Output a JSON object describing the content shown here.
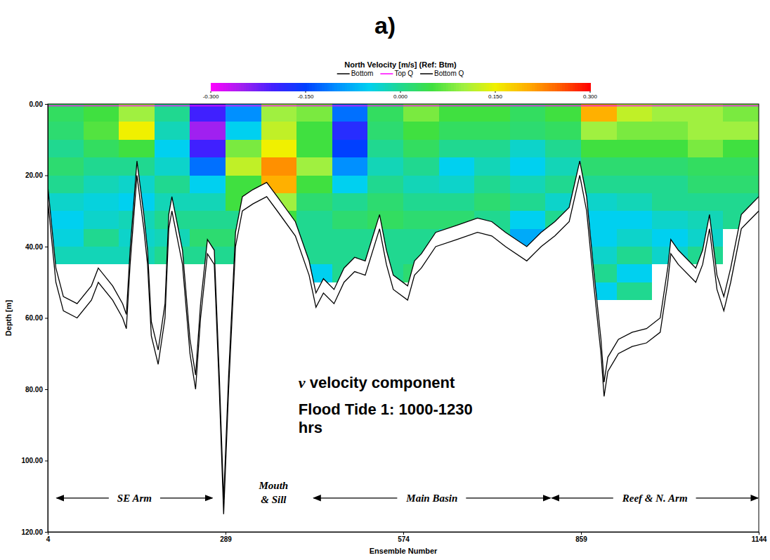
{
  "chart_data": {
    "type": "heatmap",
    "panel": "a)",
    "x_label": "Ensemble Number",
    "y_label": "Depth [m]",
    "xlim": [
      4,
      1144
    ],
    "xticks": [
      4,
      289,
      574,
      859,
      1144
    ],
    "ylim": [
      0,
      120
    ],
    "yticks": [
      {
        "value": 0,
        "label": "0.00"
      },
      {
        "value": 20,
        "label": "20.00"
      },
      {
        "value": 40,
        "label": "40.00"
      },
      {
        "value": 60,
        "label": "60.00"
      },
      {
        "value": 80,
        "label": "80.00"
      },
      {
        "value": 100,
        "label": "100.00"
      },
      {
        "value": 120,
        "label": "120.00"
      }
    ],
    "grid": false,
    "legend": "top",
    "colorbar": {
      "title": "North Velocity [m/s] (Ref: Btm)",
      "range": [
        -0.3,
        0.3
      ],
      "ticks": [
        {
          "value": -0.3,
          "label": "-0.300"
        },
        {
          "value": -0.15,
          "label": "-0.150"
        },
        {
          "value": 0,
          "label": "0.000"
        },
        {
          "value": 0.15,
          "label": "0.150"
        },
        {
          "value": 0.3,
          "label": "0.300"
        }
      ]
    },
    "x_bins": [
      4,
      61,
      118,
      175,
      232,
      289,
      346,
      403,
      460,
      517,
      574,
      631,
      688,
      745,
      802,
      859,
      916,
      973,
      1030,
      1087,
      1144
    ],
    "y_bins": [
      0,
      5,
      10,
      15,
      20,
      25,
      30,
      35,
      40,
      45,
      50,
      55,
      60
    ],
    "cells": [
      [
        0.03,
        0.05,
        0.1,
        0,
        -0.2,
        -0.1,
        0.1,
        0.08,
        -0.12,
        0.03,
        0.08,
        0.05,
        0.05,
        0.03,
        0.05,
        0.2,
        0.12,
        0.1,
        0.1,
        0.08
      ],
      [
        0.02,
        0.06,
        0.15,
        -0.02,
        -0.25,
        -0.05,
        0.12,
        0.05,
        -0.18,
        0.02,
        0.05,
        0.03,
        0.03,
        0.02,
        0.03,
        0.1,
        0.08,
        0.08,
        0.1,
        0.1
      ],
      [
        0,
        0.03,
        0.05,
        -0.05,
        -0.2,
        0.08,
        0.15,
        0.05,
        -0.15,
        0,
        0.03,
        0,
        0,
        -0.03,
        0,
        0.05,
        0.05,
        0.05,
        0.08,
        0.05
      ],
      [
        0.02,
        0,
        0,
        -0.03,
        -0.12,
        0.12,
        0.22,
        0.1,
        -0.1,
        -0.02,
        0,
        -0.05,
        -0.02,
        -0.05,
        -0.02,
        0.02,
        0.02,
        0.02,
        0.03,
        0.03
      ],
      [
        0,
        -0.02,
        -0.03,
        0,
        -0.05,
        0.05,
        0.2,
        0.05,
        -0.05,
        0,
        -0.02,
        -0.03,
        0,
        -0.02,
        0,
        0,
        0,
        0,
        0.02,
        0.02
      ],
      [
        -0.03,
        -0.04,
        -0.05,
        -0.02,
        -0.02,
        0.05,
        0.1,
        0.02,
        0,
        0.02,
        0,
        0,
        0.02,
        0,
        -0.03,
        -0.03,
        -0.02,
        0,
        0,
        0
      ],
      [
        -0.05,
        -0.03,
        -0.02,
        0,
        0,
        0,
        0.05,
        0,
        0.02,
        0.03,
        0.02,
        0.02,
        0,
        -0.05,
        0,
        -0.05,
        -0.05,
        -0.03,
        -0.02,
        0
      ],
      [
        -0.04,
        0,
        -0.03,
        -0.02,
        0.02,
        0.02,
        null,
        0,
        0,
        0,
        0,
        -0.03,
        0,
        -0.08,
        0,
        -0.05,
        -0.03,
        -0.05,
        -0.03,
        null
      ],
      [
        -0.02,
        -0.02,
        -0.02,
        0,
        0,
        0,
        null,
        0,
        0,
        0,
        0,
        0,
        null,
        -0.05,
        null,
        -0.03,
        0,
        -0.03,
        0,
        null
      ],
      [
        null,
        null,
        null,
        null,
        null,
        null,
        null,
        -0.05,
        0,
        0,
        0.02,
        null,
        null,
        null,
        null,
        0,
        -0.05,
        null,
        null,
        null
      ],
      [
        null,
        null,
        null,
        null,
        null,
        null,
        null,
        null,
        null,
        null,
        null,
        null,
        null,
        null,
        null,
        -0.05,
        0,
        null,
        null,
        null
      ],
      [
        null,
        null,
        null,
        null,
        null,
        null,
        null,
        null,
        null,
        null,
        null,
        null,
        null,
        null,
        null,
        null,
        null,
        null,
        null,
        null
      ]
    ],
    "x": [
      4,
      17,
      29,
      51,
      74,
      85,
      108,
      124,
      130,
      136,
      147,
      158,
      164,
      170,
      181,
      192,
      198,
      203,
      220,
      232,
      241,
      249,
      260,
      271,
      279,
      286,
      294,
      305,
      316,
      333,
      355,
      372,
      401,
      423,
      434,
      446,
      463,
      479,
      496,
      513,
      536,
      547,
      558,
      581,
      592,
      603,
      626,
      660,
      693,
      716,
      738,
      772,
      795,
      817,
      840,
      857,
      868,
      879,
      891,
      896,
      902,
      919,
      941,
      964,
      986,
      998,
      1003,
      1015,
      1043,
      1054,
      1065,
      1077,
      1088,
      1099,
      1116,
      1127,
      1144
    ],
    "series": [
      {
        "name": "Bottom",
        "type": "line",
        "color": "#000000",
        "values": [
          27,
          50,
          58,
          60,
          55,
          50,
          55,
          60,
          63,
          45,
          20,
          35,
          45,
          65,
          73,
          60,
          35,
          30,
          45,
          70,
          80,
          60,
          42,
          45,
          80,
          115,
          80,
          40,
          30,
          28,
          26,
          30,
          37,
          48,
          57,
          53,
          56,
          50,
          47,
          48,
          35,
          45,
          52,
          55,
          48,
          46,
          40,
          38,
          36,
          37,
          40,
          44,
          40,
          37,
          33,
          20,
          30,
          50,
          70,
          82,
          75,
          70,
          68,
          67,
          64,
          50,
          42,
          45,
          50,
          45,
          35,
          52,
          58,
          50,
          35,
          33,
          30
        ]
      },
      {
        "name": "Top Q",
        "type": "line",
        "color": "#ff00ff",
        "x": [
          4,
          1144
        ],
        "values": [
          0.5,
          0.5
        ]
      },
      {
        "name": "Bottom Q",
        "type": "line",
        "color": "#000000",
        "values": [
          23,
          46,
          54,
          56,
          51,
          46,
          51,
          56,
          59,
          41,
          16,
          31,
          41,
          61,
          69,
          56,
          31,
          26,
          41,
          66,
          76,
          56,
          38,
          41,
          76,
          111,
          76,
          36,
          26,
          24,
          22,
          26,
          33,
          44,
          53,
          49,
          52,
          46,
          43,
          44,
          31,
          41,
          48,
          51,
          44,
          42,
          36,
          34,
          32,
          33,
          36,
          40,
          36,
          33,
          29,
          16,
          26,
          46,
          66,
          78,
          71,
          66,
          64,
          63,
          60,
          46,
          38,
          41,
          46,
          41,
          31,
          48,
          54,
          46,
          31,
          29,
          26
        ]
      }
    ],
    "annotations": [
      {
        "text": "v velocity component",
        "x": 406,
        "y": 79.6
      },
      {
        "text": "Flood Tide 1: 1000-1230 hrs",
        "x": 406,
        "y": 87
      }
    ],
    "regions": [
      {
        "text": "SE Arm",
        "x": [
          17,
          269
        ],
        "y": 110.5
      },
      {
        "text": "Mouth & Sill",
        "x": 366,
        "y": 109
      },
      {
        "text": "Main Basin",
        "x": [
          429,
          811
        ],
        "y": 110.5
      },
      {
        "text": "Reef & N. Arm",
        "x": [
          811,
          1144
        ],
        "y": 110.5
      }
    ]
  }
}
